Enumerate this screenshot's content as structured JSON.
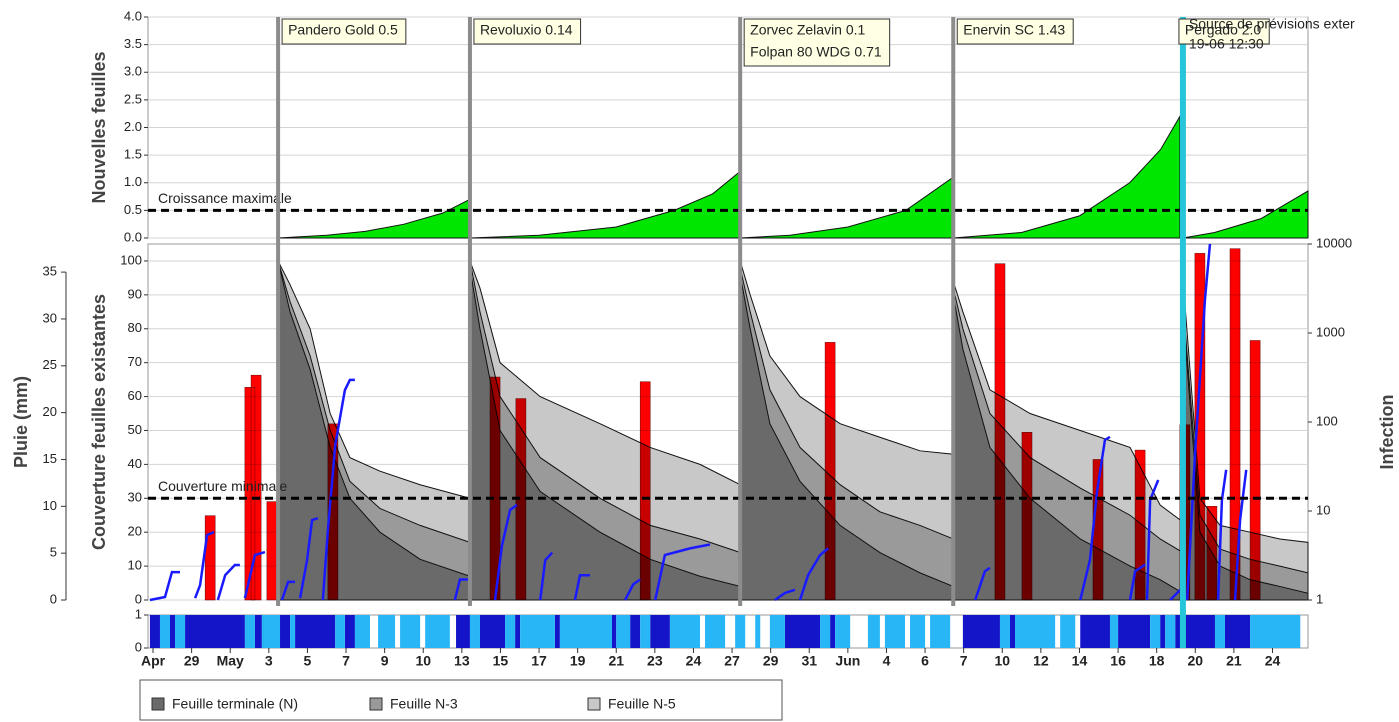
{
  "chart_data": [
    {
      "type": "area",
      "ylabel": "Nouvelles feuilles",
      "ylim": [
        0,
        4
      ],
      "grid": true,
      "color": "#00e600",
      "yticks": [
        {
          "value": 0,
          "label": "0.0"
        },
        0.5,
        {
          "value": 1,
          "label": "1.0"
        },
        1.5,
        {
          "value": 2,
          "label": "2.0"
        },
        2.5,
        {
          "value": 3,
          "label": "3.0"
        },
        3.5,
        {
          "value": 4,
          "label": "4.0"
        }
      ],
      "threshold": {
        "value": 0.5,
        "label": "Croissance maximale"
      },
      "x": [
        3.24,
        4.5,
        5.5,
        6.5,
        7.5,
        8.21,
        8.21,
        8.21,
        10,
        12,
        13.5,
        14.5,
        15.2,
        15.2,
        15.2,
        16.5,
        18,
        19.5,
        20.73,
        20.73,
        20.73,
        22.5,
        24,
        25.3,
        26.1,
        26.6,
        26.68,
        26.68,
        27.5,
        28.7,
        29.92
      ],
      "values": [
        0,
        0.05,
        0.12,
        0.25,
        0.45,
        0.7,
        null,
        0,
        0.05,
        0.2,
        0.5,
        0.8,
        1.2,
        null,
        0,
        0.05,
        0.2,
        0.5,
        1.1,
        null,
        0,
        0.1,
        0.4,
        1.0,
        1.6,
        2.2,
        null,
        0,
        0.1,
        0.35,
        0.85
      ]
    },
    {
      "type": "combo",
      "ylabel": "Couverture feuilles existantes",
      "ylim": [
        0,
        105
      ],
      "grid": true,
      "legend": "bottom",
      "yticks": [
        0,
        10,
        20,
        30,
        40,
        50,
        60,
        70,
        80,
        90,
        100
      ],
      "threshold": {
        "value": 30,
        "label": "Couverture minimale"
      },
      "x": [
        3.24,
        3.55,
        4.07,
        4.59,
        5.1,
        5.88,
        6.92,
        8.21,
        8.21,
        8.21,
        8.47,
        8.99,
        10.03,
        11.58,
        12.88,
        14.17,
        15.21,
        15.21,
        15.21,
        15.47,
        15.98,
        16.76,
        17.8,
        18.83,
        19.87,
        20.73,
        20.73,
        20.73,
        20.98,
        21.68,
        22.72,
        24.02,
        25.31,
        26.09,
        26.68,
        26.68,
        26.68,
        27.12,
        27.64,
        28.42,
        29.19,
        29.92
      ],
      "series": [
        {
          "name": "Feuille terminale (N)",
          "color": "#6a6a6a",
          "values": [
            100,
            85,
            68,
            45,
            30,
            20,
            12,
            7,
            null,
            98,
            80,
            50,
            32,
            20,
            12,
            7,
            4,
            null,
            96,
            80,
            52,
            35,
            22,
            14,
            8,
            4,
            null,
            90,
            74,
            45,
            30,
            18,
            10,
            6,
            2,
            null,
            85,
            20,
            10,
            6,
            4,
            2
          ]
        },
        {
          "name": "Feuille N-3",
          "color": "#9a9a9a",
          "values": [
            100,
            88,
            72,
            50,
            35,
            27,
            22,
            17,
            null,
            100,
            85,
            60,
            42,
            30,
            22,
            18,
            14,
            null,
            98,
            85,
            62,
            45,
            34,
            26,
            22,
            18,
            null,
            92,
            80,
            55,
            42,
            33,
            25,
            18,
            14,
            null,
            88,
            25,
            15,
            12,
            10,
            8
          ]
        },
        {
          "name": "Feuille N-5",
          "color": "#c8c8c8",
          "values": [
            100,
            93,
            80,
            55,
            42,
            38,
            34,
            30,
            null,
            100,
            92,
            70,
            60,
            52,
            45,
            40,
            34,
            null,
            100,
            90,
            72,
            60,
            52,
            48,
            44,
            43,
            null,
            94,
            85,
            62,
            55,
            50,
            45,
            28,
            23,
            null,
            95,
            30,
            22,
            20,
            18,
            17
          ]
        }
      ],
      "rain": {
        "label": "Pluie (mm)",
        "color": "#ff0000",
        "ylim": [
          0,
          38
        ],
        "yticks": [
          0,
          5,
          10,
          15,
          20,
          25,
          30,
          35
        ],
        "x": [
          1.48,
          2.51,
          2.67,
          3.08,
          4.66,
          8.86,
          9.53,
          12.75,
          17.54,
          21.94,
          22.64,
          24.48,
          25.57,
          26.73,
          27.12,
          27.43,
          28.03,
          28.55
        ],
        "values": [
          9,
          22.7,
          24,
          10.5,
          18.8,
          23.8,
          21.5,
          23.3,
          27.5,
          35.9,
          17.9,
          15,
          16,
          18.7,
          37,
          10,
          37.5,
          27.7
        ]
      },
      "infection": {
        "label": "Infection",
        "color": "#1a1aff",
        "log": true,
        "ylim": [
          1,
          10000
        ],
        "yticks": [
          1,
          10,
          100,
          1000,
          10000
        ],
        "x": [
          -0.08,
          0.31,
          0.49,
          0.7,
          null,
          1.09,
          1.22,
          1.4,
          1.58,
          null,
          1.68,
          1.87,
          2.12,
          2.25,
          null,
          2.38,
          2.64,
          2.9,
          null,
          3.34,
          3.5,
          3.68,
          null,
          3.81,
          3.99,
          4.12,
          4.27,
          null,
          4.4,
          4.53,
          4.72,
          4.97,
          5.1,
          5.23,
          null,
          7.82,
          7.95,
          8.21,
          null,
          8.86,
          9.04,
          9.25,
          9.43,
          null,
          10.03,
          10.16,
          10.34,
          null,
          10.93,
          11.06,
          11.32,
          null,
          12.23,
          12.44,
          12.62,
          null,
          13.01,
          13.26,
          13.91,
          14.43,
          null,
          16.11,
          16.37,
          16.63,
          null,
          16.76,
          16.97,
          17.28,
          17.49,
          null,
          21.3,
          21.55,
          21.68,
          null,
          24.02,
          24.27,
          24.46,
          24.66,
          24.79,
          null,
          25.31,
          25.44,
          25.7,
          null,
          25.75,
          25.83,
          26.04,
          null,
          26.35,
          26.61,
          null,
          26.79,
          27.0,
          27.25,
          27.38,
          null,
          27.59,
          27.69,
          27.8,
          null,
          28.03,
          28.16,
          28.32
        ],
        "values": [
          1,
          1.08,
          2.06,
          2.06,
          null,
          1.05,
          1.47,
          5.37,
          5.8,
          null,
          1,
          1.9,
          2.47,
          2.47,
          null,
          1.05,
          3.2,
          3.46,
          null,
          1,
          1.6,
          1.6,
          null,
          1.05,
          2.8,
          7.9,
          8.3,
          null,
          1,
          6.1,
          55,
          228,
          297,
          297,
          null,
          1,
          1.7,
          1.7,
          null,
          1,
          4.1,
          10.3,
          11.7,
          null,
          1,
          2.8,
          3.4,
          null,
          1,
          1.9,
          1.9,
          null,
          1,
          1.5,
          1.7,
          null,
          1,
          3.2,
          3.8,
          4.2,
          null,
          1,
          1.2,
          1.3,
          null,
          1,
          1.9,
          3.2,
          3.8,
          null,
          1,
          2.1,
          2.3,
          null,
          1,
          2.8,
          17.2,
          63,
          68,
          null,
          1,
          2.1,
          2.5,
          null,
          1,
          13.3,
          22.3,
          null,
          1,
          1.3,
          null,
          1,
          48.5,
          2350,
          10000,
          null,
          1,
          13.3,
          29,
          null,
          1,
          7.9,
          29
        ]
      }
    },
    {
      "type": "strip",
      "ylim": [
        0,
        1
      ],
      "yticks": [
        0,
        1
      ],
      "xlim": [
        -0.13,
        29.92
      ],
      "xticks": [
        {
          "value": 0,
          "label": "Apr"
        },
        {
          "value": 1,
          "label": "29"
        },
        {
          "value": 2,
          "label": "May"
        },
        {
          "value": 3,
          "label": "3"
        },
        {
          "value": 4,
          "label": "5"
        },
        {
          "value": 5,
          "label": "7"
        },
        {
          "value": 6,
          "label": "9"
        },
        {
          "value": 7,
          "label": "10"
        },
        {
          "value": 8,
          "label": "13"
        },
        {
          "value": 9,
          "label": "15"
        },
        {
          "value": 10,
          "label": "17"
        },
        {
          "value": 11,
          "label": "19"
        },
        {
          "value": 12,
          "label": "21"
        },
        {
          "value": 13,
          "label": "23"
        },
        {
          "value": 14,
          "label": "24"
        },
        {
          "value": 15,
          "label": "27"
        },
        {
          "value": 16,
          "label": "29"
        },
        {
          "value": 17,
          "label": "31"
        },
        {
          "value": 18,
          "label": "Jun"
        },
        {
          "value": 19,
          "label": "4"
        },
        {
          "value": 20,
          "label": "6"
        },
        {
          "value": 21,
          "label": "7"
        },
        {
          "value": 22,
          "label": "10"
        },
        {
          "value": 23,
          "label": "12"
        },
        {
          "value": 24,
          "label": "14"
        },
        {
          "value": 25,
          "label": "16"
        },
        {
          "value": 26,
          "label": "18"
        },
        {
          "value": 27,
          "label": "20"
        },
        {
          "value": 28,
          "label": "21"
        },
        {
          "value": 29,
          "label": "24"
        }
      ],
      "series": [
        {
          "color": "#1414c8",
          "intervals": [
            [
              -0.08,
              0.18
            ],
            [
              0.44,
              0.57
            ],
            [
              0.83,
              2.38
            ],
            [
              2.64,
              2.82
            ],
            [
              3.29,
              3.55
            ],
            [
              3.68,
              4.72
            ],
            [
              4.97,
              5.23
            ],
            [
              7.85,
              8.21
            ],
            [
              8.47,
              9.12
            ],
            [
              9.38,
              9.51
            ],
            [
              10.41,
              10.54
            ],
            [
              11.89,
              12.0
            ],
            [
              12.36,
              12.62
            ],
            [
              12.88,
              13.39
            ],
            [
              16.37,
              17.28
            ],
            [
              17.54,
              17.67
            ],
            [
              20.98,
              21.94
            ],
            [
              22.2,
              22.33
            ],
            [
              24.02,
              24.79
            ],
            [
              25.0,
              25.83
            ],
            [
              26.09,
              26.22
            ],
            [
              26.48,
              26.68
            ],
            [
              26.74,
              27.51
            ],
            [
              27.77,
              28.42
            ]
          ]
        },
        {
          "color": "#29b6f6",
          "intervals": [
            [
              0.18,
              0.44
            ],
            [
              0.57,
              0.83
            ],
            [
              2.38,
              2.64
            ],
            [
              2.82,
              3.29
            ],
            [
              3.55,
              3.68
            ],
            [
              4.72,
              4.97
            ],
            [
              5.23,
              5.62
            ],
            [
              5.83,
              6.27
            ],
            [
              6.4,
              6.92
            ],
            [
              7.05,
              7.69
            ],
            [
              8.21,
              8.47
            ],
            [
              9.12,
              9.38
            ],
            [
              9.51,
              10.41
            ],
            [
              10.54,
              11.89
            ],
            [
              12.0,
              12.36
            ],
            [
              12.62,
              12.88
            ],
            [
              13.39,
              14.17
            ],
            [
              14.3,
              14.82
            ],
            [
              15.08,
              15.34
            ],
            [
              15.6,
              15.73
            ],
            [
              15.98,
              16.37
            ],
            [
              17.28,
              17.54
            ],
            [
              17.67,
              18.06
            ],
            [
              18.52,
              18.83
            ],
            [
              18.96,
              19.48
            ],
            [
              19.61,
              20.0
            ],
            [
              20.13,
              20.65
            ],
            [
              21.94,
              22.2
            ],
            [
              22.33,
              23.37
            ],
            [
              23.5,
              23.89
            ],
            [
              24.79,
              25.0
            ],
            [
              25.83,
              26.09
            ],
            [
              26.22,
              26.48
            ],
            [
              27.51,
              27.77
            ],
            [
              28.42,
              29.72
            ]
          ]
        }
      ]
    }
  ],
  "treatment_color": "#8c8c8c",
  "treatments": [
    {
      "x": 3.24,
      "labels": [
        "Pandero Gold 0.5"
      ]
    },
    {
      "x": 8.21,
      "labels": [
        "Revoluxio 0.14"
      ]
    },
    {
      "x": 15.21,
      "labels": [
        "Zorvec Zelavin 0.1",
        "Folpan 80 WDG 0.71"
      ]
    },
    {
      "x": 20.73,
      "labels": [
        "Enervin SC 1.43"
      ]
    }
  ],
  "forecast": {
    "x": 26.68,
    "color": "#26c6da",
    "labels": [
      "Pergado 2.0"
    ],
    "notes": [
      "Source de prévisions exter",
      "19-06 12:30"
    ]
  }
}
